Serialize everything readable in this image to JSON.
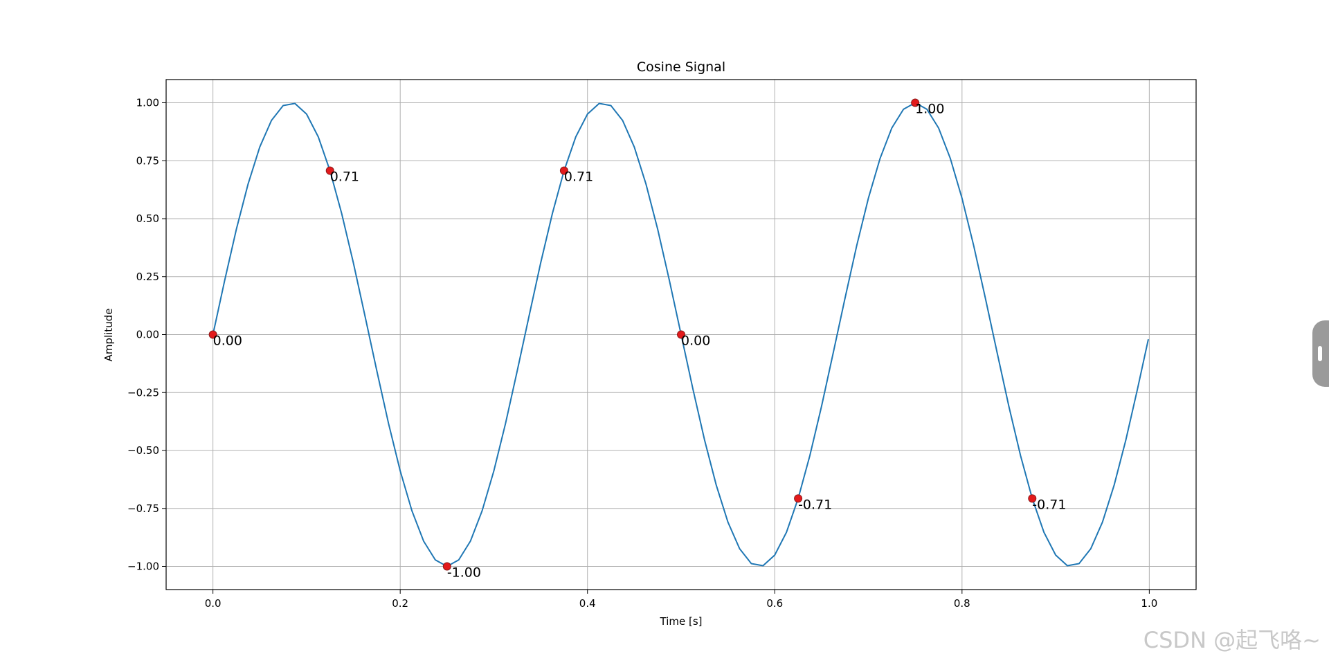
{
  "chart_data": {
    "type": "line",
    "title": "Cosine Signal",
    "xlabel": "Time [s]",
    "ylabel": "Amplitude",
    "xlim": [
      -0.05,
      1.05
    ],
    "ylim": [
      -1.1,
      1.1
    ],
    "grid": true,
    "xticks": [
      {
        "value": 0,
        "label": "0.0"
      },
      0.2,
      0.4,
      0.6,
      0.8,
      {
        "value": 1,
        "label": "1.0"
      }
    ],
    "yticks": [
      {
        "value": -1,
        "label": "−1.00"
      },
      {
        "value": -0.75,
        "label": "−0.75"
      },
      {
        "value": -0.5,
        "label": "−0.50"
      },
      {
        "value": -0.25,
        "label": "−0.25"
      },
      {
        "value": 0,
        "label": "0.00"
      },
      {
        "value": 0.25,
        "label": "0.25"
      },
      {
        "value": 0.5,
        "label": "0.50"
      },
      {
        "value": 0.75,
        "label": "0.75"
      },
      {
        "value": 1,
        "label": "1.00"
      }
    ],
    "series": [
      {
        "type": "line",
        "color": "#1f77b4",
        "x": [
          0,
          0.0125,
          0.025,
          0.0375,
          0.05,
          0.0625,
          0.075,
          0.0875,
          0.1,
          0.1125,
          0.125,
          0.1375,
          0.15,
          0.1625,
          0.175,
          0.1875,
          0.2,
          0.2125,
          0.225,
          0.2375,
          0.25,
          0.2625,
          0.275,
          0.2875,
          0.3,
          0.3125,
          0.325,
          0.3375,
          0.35,
          0.3625,
          0.375,
          0.3875,
          0.4,
          0.4125,
          0.425,
          0.4375,
          0.45,
          0.4625,
          0.475,
          0.4875,
          0.5,
          0.5125,
          0.525,
          0.5375,
          0.55,
          0.5625,
          0.575,
          0.5875,
          0.6,
          0.6125,
          0.625,
          0.6375,
          0.65,
          0.6625,
          0.675,
          0.6875,
          0.7,
          0.7125,
          0.725,
          0.7375,
          0.75,
          0.7625,
          0.775,
          0.7875,
          0.8,
          0.8125,
          0.825,
          0.8375,
          0.85,
          0.8625,
          0.875,
          0.8875,
          0.9,
          0.9125,
          0.925,
          0.9375,
          0.95,
          0.9625,
          0.975,
          0.9875,
          0.999
        ],
        "values": [
          0,
          0.233,
          0.454,
          0.649,
          0.809,
          0.924,
          0.988,
          0.997,
          0.951,
          0.853,
          0.707,
          0.522,
          0.309,
          0.078,
          -0.156,
          -0.383,
          -0.588,
          -0.76,
          -0.891,
          -0.972,
          -1,
          -0.972,
          -0.891,
          -0.76,
          -0.588,
          -0.383,
          -0.156,
          0.078,
          0.309,
          0.522,
          0.707,
          0.853,
          0.951,
          0.997,
          0.988,
          0.924,
          0.809,
          0.649,
          0.454,
          0.233,
          0,
          -0.233,
          -0.454,
          -0.649,
          -0.809,
          -0.924,
          -0.988,
          -0.997,
          -0.951,
          -0.853,
          -0.707,
          -0.522,
          -0.309,
          -0.078,
          0.156,
          0.383,
          0.588,
          0.76,
          0.891,
          0.972,
          1,
          0.972,
          0.891,
          0.76,
          0.588,
          0.383,
          0.156,
          -0.078,
          -0.309,
          -0.522,
          -0.707,
          -0.853,
          -0.951,
          -0.997,
          -0.988,
          -0.924,
          -0.809,
          -0.649,
          -0.454,
          -0.233,
          -0.02
        ]
      },
      {
        "type": "scatter",
        "color": "#e31a1c",
        "x": [
          0,
          0.125,
          0.25,
          0.375,
          0.5,
          0.625,
          0.75,
          0.875
        ],
        "values": [
          0,
          0.707,
          -1,
          0.707,
          0,
          -0.707,
          1,
          -0.707
        ],
        "value_labels": [
          "0.00",
          "0.71",
          "-1.00",
          "0.71",
          "0.00",
          "-0.71",
          "1.00",
          "-0.71"
        ]
      }
    ]
  },
  "watermark": "CSDN @起飞咯~"
}
